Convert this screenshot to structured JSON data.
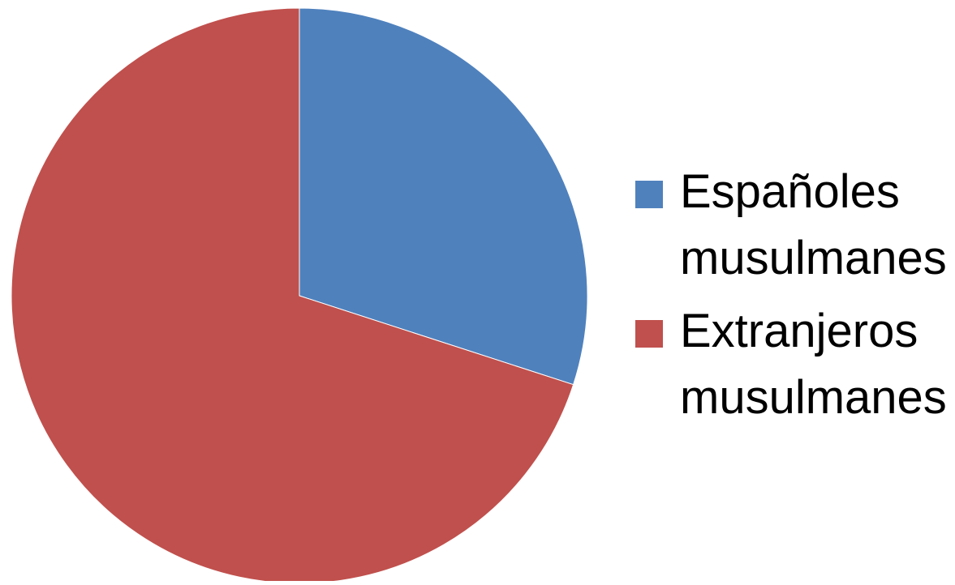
{
  "chart_data": {
    "type": "pie",
    "title": "",
    "labels": [
      "Españoles musulmanes",
      "Extranjeros musulmanes"
    ],
    "values": [
      30,
      70
    ],
    "unit": "percent",
    "colors": [
      "#4F81BD",
      "#C0504D"
    ],
    "start_angle": "12 o'clock",
    "direction": "clockwise",
    "legend": {
      "placement": "right",
      "entries": [
        {
          "lines": [
            "Españoles",
            "musulmanes"
          ],
          "color": "#4F81BD"
        },
        {
          "lines": [
            "Extranjeros",
            "musulmanes"
          ],
          "color": "#C0504D"
        }
      ]
    }
  }
}
